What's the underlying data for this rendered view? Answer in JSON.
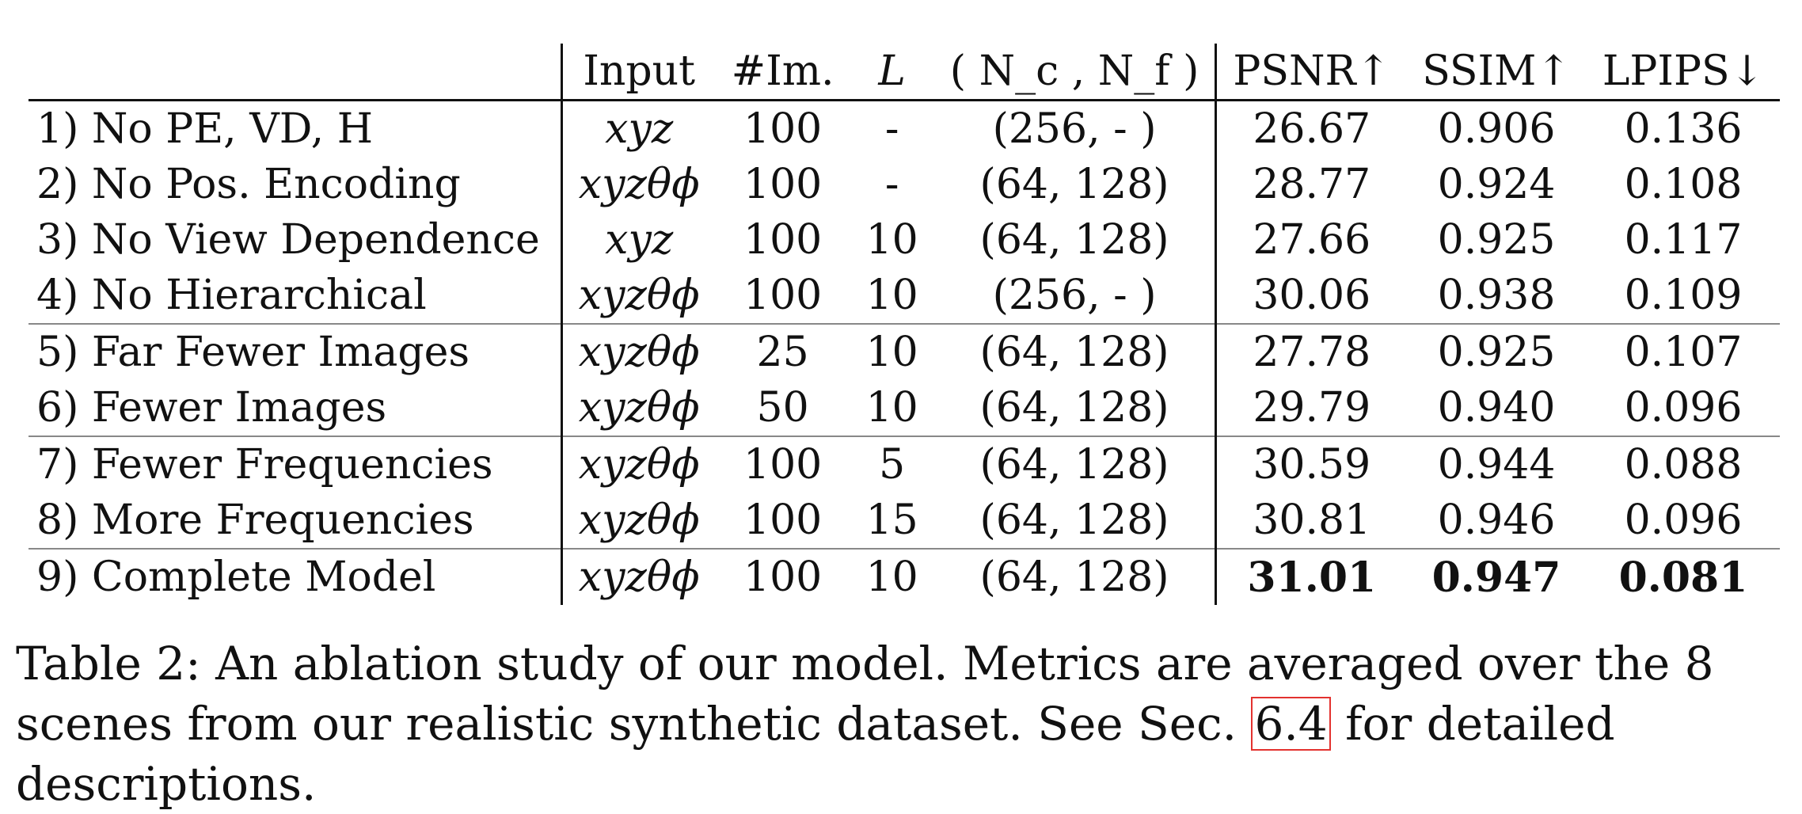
{
  "table": {
    "headers": [
      "",
      "Input",
      "#Im.",
      "L",
      "( N_c , N_f )",
      "PSNR↑",
      "SSIM↑",
      "LPIPS↓"
    ],
    "rows": [
      {
        "label": "1) No PE, VD, H",
        "input": "xyz",
        "images": "100",
        "L": "-",
        "samples": "(256,  - )",
        "psnr": "26.67",
        "ssim": "0.906",
        "lpips": "0.136"
      },
      {
        "label": "2) No Pos. Encoding",
        "input": "xyzθϕ",
        "images": "100",
        "L": "-",
        "samples": "(64, 128)",
        "psnr": "28.77",
        "ssim": "0.924",
        "lpips": "0.108"
      },
      {
        "label": "3) No View Dependence",
        "input": "xyz",
        "images": "100",
        "L": "10",
        "samples": "(64, 128)",
        "psnr": "27.66",
        "ssim": "0.925",
        "lpips": "0.117"
      },
      {
        "label": "4) No Hierarchical",
        "input": "xyzθϕ",
        "images": "100",
        "L": "10",
        "samples": "(256,  - )",
        "psnr": "30.06",
        "ssim": "0.938",
        "lpips": "0.109"
      },
      {
        "label": "5) Far Fewer Images",
        "input": "xyzθϕ",
        "images": "25",
        "L": "10",
        "samples": "(64, 128)",
        "psnr": "27.78",
        "ssim": "0.925",
        "lpips": "0.107"
      },
      {
        "label": "6) Fewer Images",
        "input": "xyzθϕ",
        "images": "50",
        "L": "10",
        "samples": "(64, 128)",
        "psnr": "29.79",
        "ssim": "0.940",
        "lpips": "0.096"
      },
      {
        "label": "7) Fewer Frequencies",
        "input": "xyzθϕ",
        "images": "100",
        "L": "5",
        "samples": "(64, 128)",
        "psnr": "30.59",
        "ssim": "0.944",
        "lpips": "0.088"
      },
      {
        "label": "8) More Frequencies",
        "input": "xyzθϕ",
        "images": "100",
        "L": "15",
        "samples": "(64, 128)",
        "psnr": "30.81",
        "ssim": "0.946",
        "lpips": "0.096"
      },
      {
        "label": "9) Complete Model",
        "input": "xyzθϕ",
        "images": "100",
        "L": "10",
        "samples": "(64, 128)",
        "psnr": "31.01",
        "ssim": "0.947",
        "lpips": "0.081"
      }
    ]
  },
  "caption": {
    "prefix": "Table 2: An ablation study of our model. Metrics are averaged over the 8 scenes from our realistic synthetic dataset. See Sec.",
    "ref": "6.4",
    "suffix": "for detailed descriptions."
  }
}
